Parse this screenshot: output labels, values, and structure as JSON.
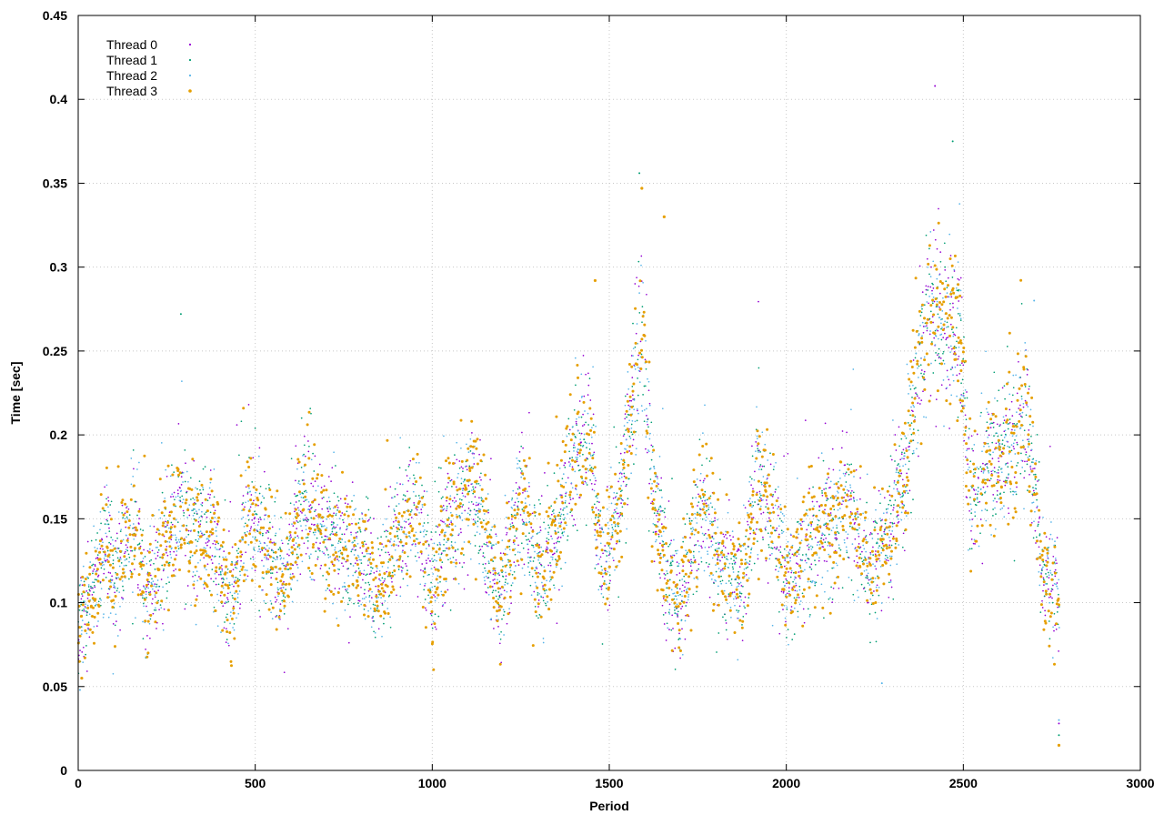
{
  "chart_data": {
    "type": "scatter",
    "title": "",
    "xlabel": "Period",
    "ylabel": "Time [sec]",
    "xlim": [
      0,
      3000
    ],
    "ylim": [
      0,
      0.45
    ],
    "x_ticks": [
      0,
      500,
      1000,
      1500,
      2000,
      2500,
      3000
    ],
    "y_ticks": [
      0,
      0.05,
      0.1,
      0.15,
      0.2,
      0.25,
      0.3,
      0.35,
      0.4,
      0.45
    ],
    "x_tick_labels": [
      "0",
      "500",
      "1000",
      "1500",
      "2000",
      "2500",
      "3000"
    ],
    "y_tick_labels": [
      "0",
      "0.05",
      "0.1",
      "0.15",
      "0.2",
      "0.25",
      "0.3",
      "0.35",
      "0.4",
      "0.45"
    ],
    "grid": true,
    "legend_position": "top-left",
    "series": [
      {
        "name": "Thread 0",
        "color": "#9400d3",
        "marker": "dot"
      },
      {
        "name": "Thread 1",
        "color": "#009e73",
        "marker": "dot"
      },
      {
        "name": "Thread 2",
        "color": "#56b4e9",
        "marker": "dot"
      },
      {
        "name": "Thread 3",
        "color": "#e69f00",
        "marker": "dot-large"
      }
    ],
    "x_range_of_points": [
      0,
      2770
    ],
    "trend": [
      [
        0,
        0.08
      ],
      [
        40,
        0.11
      ],
      [
        80,
        0.14
      ],
      [
        100,
        0.11
      ],
      [
        140,
        0.14
      ],
      [
        170,
        0.14
      ],
      [
        190,
        0.1
      ],
      [
        240,
        0.13
      ],
      [
        290,
        0.16
      ],
      [
        320,
        0.14
      ],
      [
        380,
        0.14
      ],
      [
        430,
        0.1
      ],
      [
        480,
        0.15
      ],
      [
        540,
        0.13
      ],
      [
        580,
        0.11
      ],
      [
        640,
        0.16
      ],
      [
        700,
        0.14
      ],
      [
        760,
        0.13
      ],
      [
        820,
        0.12
      ],
      [
        840,
        0.1
      ],
      [
        900,
        0.14
      ],
      [
        960,
        0.15
      ],
      [
        1000,
        0.11
      ],
      [
        1050,
        0.15
      ],
      [
        1110,
        0.17
      ],
      [
        1160,
        0.13
      ],
      [
        1190,
        0.1
      ],
      [
        1250,
        0.16
      ],
      [
        1300,
        0.12
      ],
      [
        1340,
        0.13
      ],
      [
        1380,
        0.17
      ],
      [
        1440,
        0.2
      ],
      [
        1480,
        0.12
      ],
      [
        1540,
        0.17
      ],
      [
        1590,
        0.27
      ],
      [
        1620,
        0.17
      ],
      [
        1660,
        0.12
      ],
      [
        1700,
        0.1
      ],
      [
        1760,
        0.16
      ],
      [
        1820,
        0.12
      ],
      [
        1870,
        0.11
      ],
      [
        1920,
        0.17
      ],
      [
        1960,
        0.15
      ],
      [
        2000,
        0.11
      ],
      [
        2060,
        0.13
      ],
      [
        2120,
        0.15
      ],
      [
        2180,
        0.16
      ],
      [
        2230,
        0.12
      ],
      [
        2280,
        0.14
      ],
      [
        2330,
        0.17
      ],
      [
        2360,
        0.22
      ],
      [
        2400,
        0.27
      ],
      [
        2440,
        0.27
      ],
      [
        2490,
        0.26
      ],
      [
        2520,
        0.16
      ],
      [
        2560,
        0.18
      ],
      [
        2620,
        0.19
      ],
      [
        2680,
        0.21
      ],
      [
        2720,
        0.12
      ],
      [
        2760,
        0.11
      ],
      [
        2770,
        0.1
      ]
    ],
    "outliers": [
      {
        "series": 0,
        "x": 2420,
        "y": 0.408
      },
      {
        "series": 1,
        "x": 2470,
        "y": 0.375
      },
      {
        "series": 1,
        "x": 1585,
        "y": 0.356
      },
      {
        "series": 3,
        "x": 1592,
        "y": 0.347
      },
      {
        "series": 3,
        "x": 1655,
        "y": 0.33
      },
      {
        "series": 1,
        "x": 290,
        "y": 0.272
      },
      {
        "series": 2,
        "x": 2700,
        "y": 0.28
      },
      {
        "series": 3,
        "x": 1460,
        "y": 0.292
      },
      {
        "series": 2,
        "x": 2270,
        "y": 0.052
      },
      {
        "series": 2,
        "x": 2770,
        "y": 0.03
      },
      {
        "series": 1,
        "x": 2770,
        "y": 0.021
      },
      {
        "series": 3,
        "x": 2770,
        "y": 0.015
      },
      {
        "series": 0,
        "x": 2770,
        "y": 0.028
      },
      {
        "series": 3,
        "x": 10,
        "y": 0.055
      },
      {
        "series": 2,
        "x": 5,
        "y": 0.048
      }
    ]
  }
}
